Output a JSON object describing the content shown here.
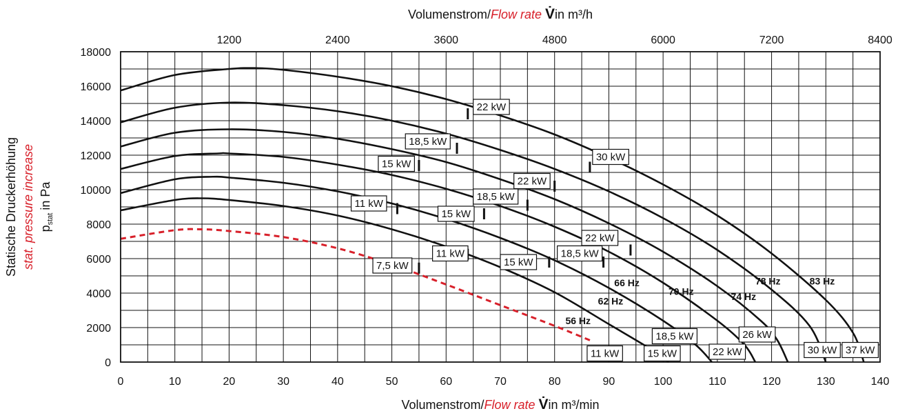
{
  "chart_data": {
    "type": "line",
    "x_bottom": {
      "label_prefix": "Volumenstrom/",
      "label_flow": "Flow rate",
      "label_symbol": "V̇",
      "label_suffix": "in m³/min",
      "range": [
        0,
        140
      ],
      "ticks": [
        0,
        10,
        20,
        30,
        40,
        50,
        60,
        70,
        80,
        90,
        100,
        110,
        120,
        130,
        140
      ]
    },
    "x_top": {
      "label_prefix": "Volumenstrom/",
      "label_flow": "Flow rate",
      "label_symbol": "V̇",
      "label_suffix": "in m³/h",
      "ticks": [
        1200,
        2400,
        3600,
        4800,
        6000,
        7200,
        8400
      ]
    },
    "y": {
      "label_de": "Statische Druckerhöhung",
      "label_en": "stat. pressure increase",
      "label_p": "p",
      "label_sub": "stat",
      "label_unit": "in Pa",
      "range": [
        0,
        18000
      ],
      "ticks": [
        0,
        2000,
        4000,
        6000,
        8000,
        10000,
        12000,
        14000,
        16000,
        18000
      ]
    },
    "grid": true,
    "grid_step_x": 5,
    "grid_step_y": 1000,
    "colors": {
      "curve": "#111111",
      "red_curve": "#d8202a",
      "grid": "#111111"
    },
    "series": [
      {
        "name": "56 Hz",
        "dashed": true,
        "color": "#d8202a",
        "points": [
          [
            0,
            7150
          ],
          [
            10,
            7650
          ],
          [
            15,
            7700
          ],
          [
            20,
            7600
          ],
          [
            30,
            7250
          ],
          [
            40,
            6600
          ],
          [
            50,
            5650
          ],
          [
            60,
            4500
          ],
          [
            70,
            3300
          ],
          [
            80,
            2100
          ],
          [
            87,
            1200
          ]
        ]
      },
      {
        "name": "62 Hz",
        "points": [
          [
            0,
            8800
          ],
          [
            10,
            9400
          ],
          [
            15,
            9500
          ],
          [
            20,
            9400
          ],
          [
            30,
            9050
          ],
          [
            40,
            8500
          ],
          [
            50,
            7700
          ],
          [
            60,
            6700
          ],
          [
            70,
            5500
          ],
          [
            80,
            4050
          ],
          [
            90,
            2200
          ],
          [
            98,
            700
          ],
          [
            101,
            0
          ]
        ]
      },
      {
        "name": "66 Hz",
        "points": [
          [
            0,
            9800
          ],
          [
            10,
            10600
          ],
          [
            17,
            10750
          ],
          [
            20,
            10700
          ],
          [
            30,
            10400
          ],
          [
            40,
            9900
          ],
          [
            50,
            9200
          ],
          [
            60,
            8300
          ],
          [
            70,
            7200
          ],
          [
            80,
            5900
          ],
          [
            90,
            4300
          ],
          [
            100,
            2400
          ],
          [
            106,
            1000
          ],
          [
            109,
            0
          ]
        ]
      },
      {
        "name": "70 Hz",
        "points": [
          [
            0,
            11200
          ],
          [
            10,
            11950
          ],
          [
            18,
            12100
          ],
          [
            20,
            12100
          ],
          [
            30,
            11900
          ],
          [
            40,
            11450
          ],
          [
            50,
            10850
          ],
          [
            60,
            10050
          ],
          [
            70,
            9050
          ],
          [
            80,
            7850
          ],
          [
            90,
            6400
          ],
          [
            100,
            4600
          ],
          [
            110,
            2400
          ],
          [
            115,
            1000
          ],
          [
            117,
            0
          ]
        ]
      },
      {
        "name": "74 Hz",
        "points": [
          [
            0,
            12500
          ],
          [
            10,
            13300
          ],
          [
            20,
            13500
          ],
          [
            30,
            13350
          ],
          [
            40,
            12950
          ],
          [
            50,
            12350
          ],
          [
            60,
            11600
          ],
          [
            70,
            10600
          ],
          [
            80,
            9450
          ],
          [
            90,
            8050
          ],
          [
            100,
            6400
          ],
          [
            110,
            4400
          ],
          [
            118,
            2400
          ],
          [
            121,
            1300
          ],
          [
            123,
            0
          ]
        ]
      },
      {
        "name": "78 Hz",
        "points": [
          [
            0,
            13900
          ],
          [
            10,
            14750
          ],
          [
            20,
            15050
          ],
          [
            30,
            14900
          ],
          [
            40,
            14550
          ],
          [
            50,
            14000
          ],
          [
            60,
            13250
          ],
          [
            70,
            12300
          ],
          [
            80,
            11200
          ],
          [
            90,
            9900
          ],
          [
            100,
            8350
          ],
          [
            110,
            6500
          ],
          [
            120,
            4200
          ],
          [
            127,
            2100
          ],
          [
            130,
            0
          ]
        ]
      },
      {
        "name": "83 Hz",
        "points": [
          [
            0,
            15750
          ],
          [
            10,
            16650
          ],
          [
            20,
            17000
          ],
          [
            25,
            17050
          ],
          [
            30,
            16950
          ],
          [
            40,
            16550
          ],
          [
            50,
            16000
          ],
          [
            60,
            15250
          ],
          [
            70,
            14300
          ],
          [
            80,
            13200
          ],
          [
            90,
            11850
          ],
          [
            100,
            10300
          ],
          [
            110,
            8500
          ],
          [
            120,
            6300
          ],
          [
            130,
            3600
          ],
          [
            135,
            1700
          ],
          [
            137,
            0
          ]
        ]
      }
    ],
    "freq_labels": [
      {
        "text": "56 Hz",
        "x": 82,
        "y": 2200
      },
      {
        "text": "62 Hz",
        "x": 88,
        "y": 3350
      },
      {
        "text": "66 Hz",
        "x": 91,
        "y": 4400
      },
      {
        "text": "70 Hz",
        "x": 101,
        "y": 3900
      },
      {
        "text": "74 Hz",
        "x": 112.5,
        "y": 3600
      },
      {
        "text": "78 Hz",
        "x": 117,
        "y": 4500
      },
      {
        "text": "83 Hz",
        "x": 127,
        "y": 4500
      }
    ],
    "power_labels": [
      {
        "text": "22 kW",
        "x": 65,
        "y": 14800,
        "mark_x": 64,
        "mark_y": 14400
      },
      {
        "text": "30 kW",
        "x": 87,
        "y": 11900,
        "mark_x": 86.5,
        "mark_y": 11300
      },
      {
        "text": "18,5 kW",
        "x": 52.5,
        "y": 12800,
        "mark_x": 62,
        "mark_y": 12400
      },
      {
        "text": "15 kW",
        "x": 47.5,
        "y": 11500,
        "mark_x": 55,
        "mark_y": 11400
      },
      {
        "text": "22 kW",
        "x": 72.5,
        "y": 10500,
        "mark_x": 80,
        "mark_y": 10200
      },
      {
        "text": "18,5 kW",
        "x": 65,
        "y": 9600,
        "mark_x": 75,
        "mark_y": 9100
      },
      {
        "text": "11 kW",
        "x": 42.5,
        "y": 9200,
        "mark_x": 51,
        "mark_y": 8900
      },
      {
        "text": "15 kW",
        "x": 58.5,
        "y": 8600,
        "mark_x": 67,
        "mark_y": 8600
      },
      {
        "text": "22 kW",
        "x": 85,
        "y": 7200,
        "mark_x": 94,
        "mark_y": 6500
      },
      {
        "text": "11 kW",
        "x": 57.5,
        "y": 6300,
        "mark_x": 64,
        "mark_y": 6250
      },
      {
        "text": "15 kW",
        "x": 70,
        "y": 5800,
        "mark_x": 79,
        "mark_y": 5800
      },
      {
        "text": "18,5 kW",
        "x": 80.5,
        "y": 6300,
        "mark_x": 89,
        "mark_y": 5800
      },
      {
        "text": "7,5 kW",
        "x": 46.5,
        "y": 5600,
        "mark_x": 55,
        "mark_y": 5450
      },
      {
        "text": "26 kW",
        "x": 114,
        "y": 1600
      },
      {
        "text": "18,5 kW",
        "x": 98,
        "y": 1500
      },
      {
        "text": "30 kW",
        "x": 126,
        "y": 700
      },
      {
        "text": "37 kW",
        "x": 133,
        "y": 700
      },
      {
        "text": "11 kW",
        "x": 86,
        "y": 500
      },
      {
        "text": "15 kW",
        "x": 96.5,
        "y": 500
      },
      {
        "text": "22 kW",
        "x": 108.5,
        "y": 600
      }
    ]
  }
}
